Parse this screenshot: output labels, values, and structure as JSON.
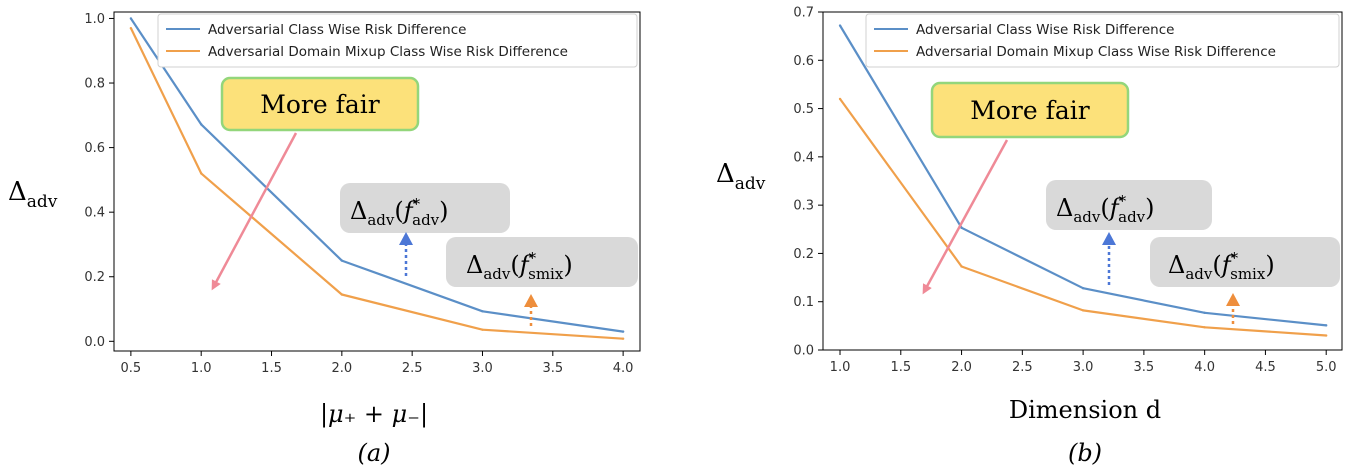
{
  "chart_data": [
    {
      "type": "line",
      "x": [
        0.5,
        1.0,
        2.0,
        3.0,
        4.0
      ],
      "series": [
        {
          "name": "Adversarial Class Wise Risk Difference",
          "color": "#5b8fc7",
          "values": [
            1.0,
            0.672,
            0.25,
            0.093,
            0.03
          ]
        },
        {
          "name": "Adversarial Domain Mixup Class Wise Risk Difference",
          "color": "#f0a04b",
          "values": [
            0.97,
            0.52,
            0.145,
            0.036,
            0.008
          ]
        }
      ],
      "xlim": [
        0.38,
        4.12
      ],
      "ylim": [
        -0.03,
        1.02
      ],
      "xticks": [
        "0.5",
        "1.0",
        "1.5",
        "2.0",
        "2.5",
        "3.0",
        "3.5",
        "4.0"
      ],
      "yticks": [
        "0.0",
        "0.2",
        "0.4",
        "0.6",
        "0.8",
        "1.0"
      ],
      "ylabel_main": "Δ",
      "ylabel_sub": "adv",
      "xlabel": "|μ₊ + μ₋|",
      "caption": "(a)",
      "legend": "top-right",
      "grid": false
    },
    {
      "type": "line",
      "x": [
        1.0,
        2.0,
        3.0,
        4.0,
        5.0
      ],
      "series": [
        {
          "name": "Adversarial Class Wise Risk Difference",
          "color": "#5b8fc7",
          "values": [
            0.672,
            0.253,
            0.128,
            0.077,
            0.051
          ]
        },
        {
          "name": "Adversarial Domain Mixup Class Wise Risk Difference",
          "color": "#f0a04b",
          "values": [
            0.52,
            0.173,
            0.082,
            0.047,
            0.03
          ]
        }
      ],
      "xlim": [
        0.86,
        5.13
      ],
      "ylim": [
        0.0,
        0.7
      ],
      "xticks": [
        "1.0",
        "1.5",
        "2.0",
        "2.5",
        "3.0",
        "3.5",
        "4.0",
        "4.5",
        "5.0"
      ],
      "yticks": [
        "0.0",
        "0.1",
        "0.2",
        "0.3",
        "0.4",
        "0.5",
        "0.6",
        "0.7"
      ],
      "ylabel_main": "Δ",
      "ylabel_sub": "adv",
      "xlabel": "Dimension d",
      "caption": "(b)",
      "legend": "top-right",
      "grid": false
    }
  ],
  "annotations": {
    "more_fair": "More fair",
    "delta": "Δ",
    "adv": "adv",
    "f": "f",
    "star": "*",
    "smix": "smix",
    "box_fill": "#fce17a",
    "box_border": "#93d67b",
    "gray_fill": "#d9d9d9",
    "arrow_pink": "#ef8a97",
    "arrow_blue": "#4c77d6",
    "arrow_orange": "#ee8e3c"
  }
}
